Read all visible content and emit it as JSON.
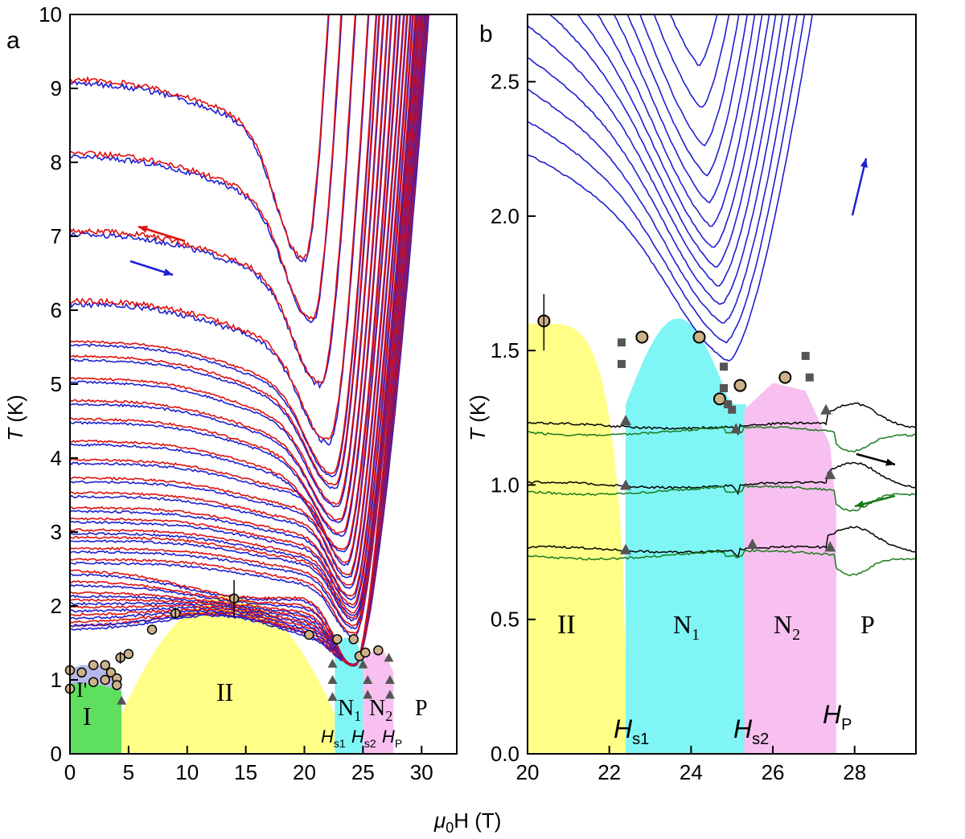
{
  "figure": {
    "xlabel_prefix": "μ",
    "xlabel_sub": "0",
    "xlabel_suffix": "H (T)",
    "ylabel_italic": "T",
    "ylabel_suffix": " (K)"
  },
  "chart_data": [
    {
      "type": "line",
      "panel_label": "a",
      "xlim": [
        0,
        33
      ],
      "ylim": [
        0,
        10
      ],
      "x_ticks": [
        0,
        5,
        10,
        15,
        20,
        25,
        30
      ],
      "y_ticks": [
        0,
        1,
        2,
        3,
        4,
        5,
        6,
        7,
        8,
        9,
        10
      ],
      "series_colors": {
        "up_sweep": "#1f1fd0",
        "down_sweep": "#e01010"
      },
      "sweep_curves_offsets_K": [
        1.7,
        1.75,
        1.85,
        1.95,
        2.05,
        2.15,
        2.3,
        2.45,
        2.6,
        2.75,
        2.9,
        3.0,
        3.15,
        3.3,
        3.5,
        3.7,
        3.95,
        4.2,
        4.5,
        4.75,
        5.05,
        5.35,
        5.55,
        6.1,
        7.05,
        8.1,
        9.1
      ],
      "phase_boundary_points": [
        {
          "x": 0.0,
          "y": 1.13
        },
        {
          "x": 0.0,
          "y": 0.88
        },
        {
          "x": 1.0,
          "y": 1.1
        },
        {
          "x": 2.0,
          "y": 1.2
        },
        {
          "x": 2.0,
          "y": 0.97
        },
        {
          "x": 3.0,
          "y": 1.2
        },
        {
          "x": 3.0,
          "y": 1.0
        },
        {
          "x": 3.5,
          "y": 1.1
        },
        {
          "x": 4.0,
          "y": 1.02
        },
        {
          "x": 4.0,
          "y": 0.93
        },
        {
          "x": 4.3,
          "y": 1.3
        },
        {
          "x": 5.0,
          "y": 1.35
        },
        {
          "x": 7.0,
          "y": 1.68
        },
        {
          "x": 9.0,
          "y": 1.9
        },
        {
          "x": 14.0,
          "y": 2.1
        },
        {
          "x": 20.4,
          "y": 1.61
        },
        {
          "x": 22.8,
          "y": 1.55
        },
        {
          "x": 24.2,
          "y": 1.55
        },
        {
          "x": 24.7,
          "y": 1.32
        },
        {
          "x": 25.2,
          "y": 1.37
        },
        {
          "x": 26.3,
          "y": 1.4
        }
      ],
      "transition_triangles": [
        {
          "x": 4.4,
          "y": 0.72
        },
        {
          "x": 22.4,
          "y": 1.22
        },
        {
          "x": 22.4,
          "y": 1.0
        },
        {
          "x": 22.4,
          "y": 0.77
        },
        {
          "x": 25.0,
          "y": 1.21
        },
        {
          "x": 25.4,
          "y": 1.0
        },
        {
          "x": 25.4,
          "y": 0.8
        },
        {
          "x": 27.2,
          "y": 1.3
        },
        {
          "x": 27.3,
          "y": 1.0
        },
        {
          "x": 27.3,
          "y": 0.8
        }
      ],
      "phase_labels": {
        "I": "I",
        "I_prime": "I'",
        "II": "II",
        "N1_base": "N",
        "N1_sub": "1",
        "N2_base": "N",
        "N2_sub": "2",
        "P": "P",
        "Hs1_base": "H",
        "Hs1_sub": "s1",
        "Hs2_base": "H",
        "Hs2_sub": "s2",
        "HP_base": "H",
        "HP_sub": "P"
      },
      "region_colors": {
        "I": "#5ee05e",
        "I_prime": "#b8b8e8",
        "II": "#ffff88",
        "N1": "#7ff5f5",
        "N2": "#f7c0f0"
      }
    },
    {
      "type": "line",
      "panel_label": "b",
      "xlim": [
        20,
        29.5
      ],
      "ylim": [
        0,
        2.75
      ],
      "x_ticks": [
        20,
        22,
        24,
        26,
        28
      ],
      "y_ticks": [
        0.0,
        0.5,
        1.0,
        1.5,
        2.0,
        2.5
      ],
      "y_tick_labels": [
        "0.0",
        "0.5",
        "1.0",
        "1.5",
        "2.0",
        "2.5"
      ],
      "series_colors": {
        "blue_sweeps": "#1f1fd0",
        "black_up": "#000000",
        "green_down": "#1a7a1a"
      },
      "low_T_sweeps": [
        {
          "base_K": 1.22
        },
        {
          "base_K": 1.0
        },
        {
          "base_K": 0.76
        }
      ],
      "points_circles": [
        {
          "x": 20.4,
          "y": 1.61
        },
        {
          "x": 22.8,
          "y": 1.55
        },
        {
          "x": 24.2,
          "y": 1.55
        },
        {
          "x": 24.7,
          "y": 1.32
        },
        {
          "x": 25.2,
          "y": 1.37
        },
        {
          "x": 26.3,
          "y": 1.4
        }
      ],
      "points_squares": [
        {
          "x": 22.3,
          "y": 1.53
        },
        {
          "x": 22.3,
          "y": 1.45
        },
        {
          "x": 24.8,
          "y": 1.44
        },
        {
          "x": 24.8,
          "y": 1.36
        },
        {
          "x": 24.9,
          "y": 1.3
        },
        {
          "x": 25.0,
          "y": 1.28
        },
        {
          "x": 26.8,
          "y": 1.48
        },
        {
          "x": 26.9,
          "y": 1.4
        }
      ],
      "transition_triangles": [
        {
          "x": 22.4,
          "y": 1.24
        },
        {
          "x": 22.4,
          "y": 1.0
        },
        {
          "x": 22.4,
          "y": 0.76
        },
        {
          "x": 25.1,
          "y": 1.21
        },
        {
          "x": 25.5,
          "y": 0.78
        },
        {
          "x": 27.3,
          "y": 1.28
        },
        {
          "x": 27.4,
          "y": 1.04
        },
        {
          "x": 27.4,
          "y": 0.77
        }
      ],
      "phase_labels": {
        "II": "II",
        "N1_base": "N",
        "N1_sub": "1",
        "N2_base": "N",
        "N2_sub": "2",
        "P": "P",
        "Hs1_base": "H",
        "Hs1_sub": "s1",
        "Hs2_base": "H",
        "Hs2_sub": "s2",
        "HP_base": "H",
        "HP_sub": "P"
      },
      "region_colors": {
        "II": "#ffff88",
        "N1": "#7ff5f5",
        "N2": "#f7c0f0"
      }
    }
  ]
}
